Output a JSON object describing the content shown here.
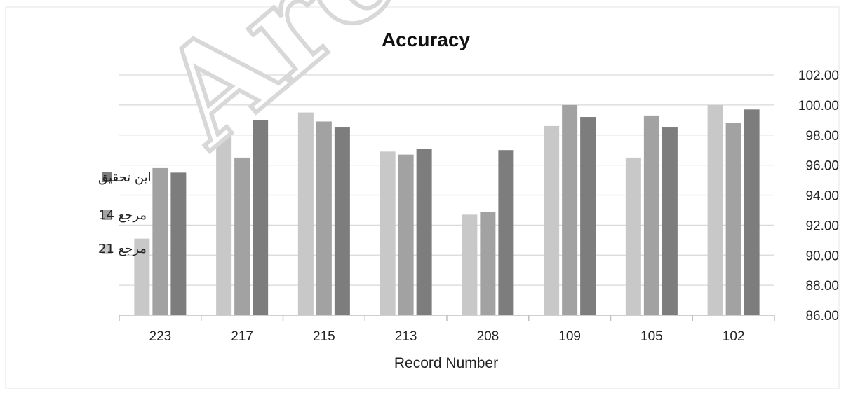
{
  "watermark": "Arc",
  "colors": {
    "series_light": "#c8c8c8",
    "series_mid": "#a2a2a2",
    "series_dark": "#7d7d7d",
    "grid": "#d9d9d9",
    "axis": "#bfbfbf"
  },
  "chart_data": {
    "type": "bar",
    "title": "Accuracy",
    "xlabel": "Record Number",
    "ylabel": "",
    "categories": [
      "223",
      "217",
      "215",
      "213",
      "208",
      "109",
      "105",
      "102"
    ],
    "ylim": [
      86,
      102
    ],
    "ytick_step": 2,
    "ytick_labels": [
      "86.00",
      "88.00",
      "90.00",
      "92.00",
      "94.00",
      "96.00",
      "98.00",
      "100.00",
      "102.00"
    ],
    "grid": true,
    "legend_position": "left",
    "y_axis_side": "right",
    "series": [
      {
        "name": "مرجع 21",
        "color": "#c8c8c8",
        "values": [
          91.1,
          98.3,
          99.5,
          96.9,
          92.7,
          98.6,
          96.5,
          100.0
        ]
      },
      {
        "name": "مرجع 14",
        "color": "#a2a2a2",
        "values": [
          95.8,
          96.5,
          98.9,
          96.7,
          92.9,
          100.0,
          99.3,
          98.8
        ]
      },
      {
        "name": "این تحقیق",
        "color": "#7d7d7d",
        "values": [
          95.5,
          99.0,
          98.5,
          97.1,
          97.0,
          99.2,
          98.5,
          99.7
        ]
      }
    ]
  }
}
